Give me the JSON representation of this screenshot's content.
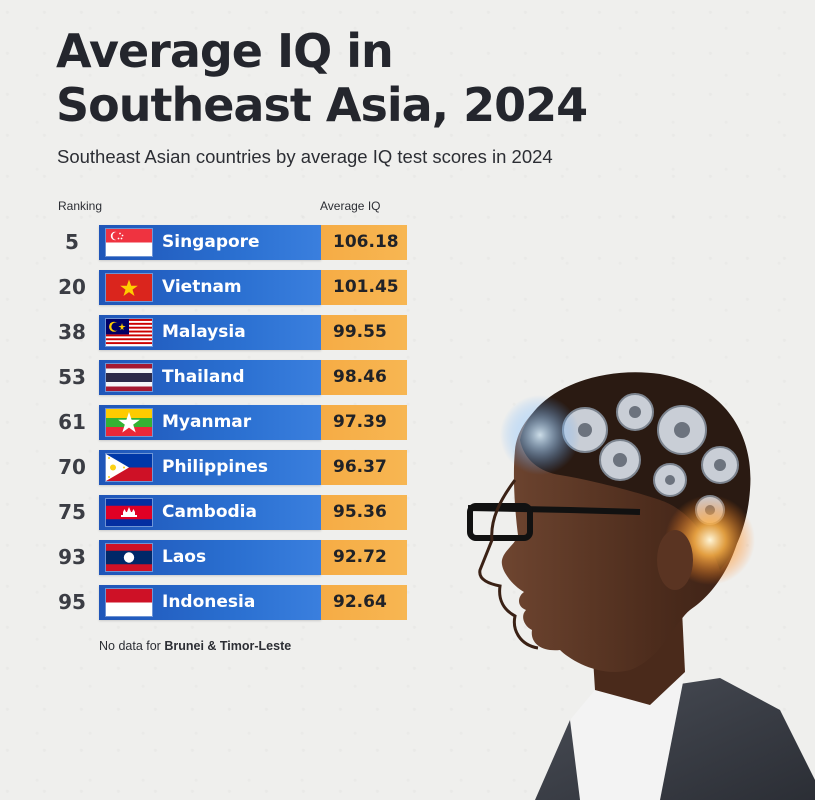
{
  "header": {
    "title_line1": "Average IQ in",
    "title_line2": "Southeast Asia, 2024",
    "subtitle": "Southeast Asian countries by average IQ test scores in 2024"
  },
  "columns": {
    "ranking": "Ranking",
    "iq": "Average IQ"
  },
  "note": {
    "prefix": "No data for ",
    "bold": "Brunei & Timor-Leste"
  },
  "colors": {
    "bar": "#2563c6",
    "score_box": "#f6ac45",
    "title": "#24262d"
  },
  "chart_data": {
    "type": "table",
    "title": "Average IQ in Southeast Asia, 2024",
    "subtitle": "Southeast Asian countries by average IQ test scores in 2024",
    "columns": [
      "Ranking",
      "Average IQ"
    ],
    "rows": [
      {
        "rank": "5",
        "country": "Singapore",
        "iq": "106.18",
        "flag": "singapore-flag-icon"
      },
      {
        "rank": "20",
        "country": "Vietnam",
        "iq": "101.45",
        "flag": "vietnam-flag-icon"
      },
      {
        "rank": "38",
        "country": "Malaysia",
        "iq": "99.55",
        "flag": "malaysia-flag-icon"
      },
      {
        "rank": "53",
        "country": "Thailand",
        "iq": "98.46",
        "flag": "thailand-flag-icon"
      },
      {
        "rank": "61",
        "country": "Myanmar",
        "iq": "97.39",
        "flag": "myanmar-flag-icon"
      },
      {
        "rank": "70",
        "country": "Philippines",
        "iq": "96.37",
        "flag": "philippines-flag-icon"
      },
      {
        "rank": "75",
        "country": "Cambodia",
        "iq": "95.36",
        "flag": "cambodia-flag-icon"
      },
      {
        "rank": "93",
        "country": "Laos",
        "iq": "92.72",
        "flag": "laos-flag-icon"
      },
      {
        "rank": "95",
        "country": "Indonesia",
        "iq": "92.64",
        "flag": "indonesia-flag-icon"
      }
    ],
    "note": "No data for Brunei & Timor-Leste"
  }
}
